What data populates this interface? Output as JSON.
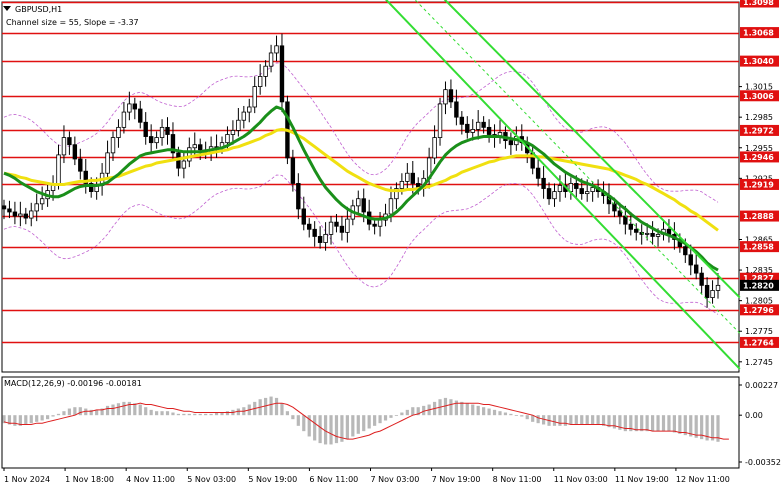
{
  "chart_data": {
    "type": "candlestick",
    "symbol_label": "GBPUSD,H1",
    "channel_label": "Channel size = 55, Slope = -3.37",
    "price_axis": {
      "ylim": [
        1.2735,
        1.3098
      ],
      "ticks": [
        "1.3098",
        "1.3068",
        "1.3040",
        "1.3015",
        "1.3006",
        "1.2985",
        "1.2972",
        "1.2955",
        "1.2946",
        "1.2925",
        "1.2919",
        "1.2888",
        "1.2865",
        "1.2858",
        "1.2835",
        "1.2827",
        "1.2820",
        "1.2805",
        "1.2796",
        "1.2775",
        "1.2764",
        "1.2745"
      ]
    },
    "horizontal_levels": [
      1.3098,
      1.3068,
      1.304,
      1.3006,
      1.2972,
      1.2946,
      1.2919,
      1.2888,
      1.2858,
      1.2827,
      1.2796,
      1.2764
    ],
    "current_price": 1.282,
    "time_axis_labels": [
      "1 Nov 2024",
      "1 Nov 18:00",
      "4 Nov 11:00",
      "5 Nov 03:00",
      "5 Nov 19:00",
      "6 Nov 11:00",
      "7 Nov 03:00",
      "7 Nov 19:00",
      "8 Nov 11:00",
      "11 Nov 03:00",
      "11 Nov 19:00",
      "12 Nov 11:00"
    ],
    "closes": [
      1.2895,
      1.2892,
      1.2888,
      1.289,
      1.2886,
      1.2893,
      1.29,
      1.2905,
      1.2913,
      1.292,
      1.2948,
      1.2965,
      1.2958,
      1.2944,
      1.2932,
      1.292,
      1.2912,
      1.2918,
      1.293,
      1.295,
      1.2965,
      1.2975,
      1.299,
      1.2998,
      1.2993,
      1.298,
      1.2966,
      1.296,
      1.2965,
      1.2975,
      1.2968,
      1.295,
      1.2935,
      1.2942,
      1.2955,
      1.2958,
      1.2953,
      1.295,
      1.2956,
      1.2955,
      1.296,
      1.2968,
      1.2972,
      1.2982,
      1.299,
      1.2995,
      1.3015,
      1.3025,
      1.3035,
      1.3048,
      1.3055,
      1.3,
      1.2945,
      1.292,
      1.2895,
      1.288,
      1.2875,
      1.2868,
      1.2862,
      1.287,
      1.2882,
      1.2878,
      1.2872,
      1.2885,
      1.2898,
      1.2905,
      1.2892,
      1.288,
      1.2878,
      1.2884,
      1.289,
      1.2905,
      1.2915,
      1.2922,
      1.293,
      1.292,
      1.2915,
      1.2925,
      1.2945,
      1.2965,
      1.2998,
      1.3012,
      1.3,
      1.2985,
      1.2978,
      1.297,
      1.2973,
      1.298,
      1.2975,
      1.2968,
      1.2965,
      1.297,
      1.2962,
      1.2958,
      1.2966,
      1.296,
      1.295,
      1.2935,
      1.2925,
      1.2915,
      1.2905,
      1.2912,
      1.2918,
      1.2912,
      1.292,
      1.2915,
      1.291,
      1.2912,
      1.2916,
      1.2912,
      1.2908,
      1.29,
      1.2893,
      1.2888,
      1.288,
      1.2875,
      1.2872,
      1.287,
      1.2871,
      1.2868,
      1.287,
      1.2875,
      1.287,
      1.2865,
      1.2858,
      1.285,
      1.284,
      1.2832,
      1.282,
      1.2808,
      1.2815,
      1.282
    ],
    "moving_averages": {
      "ma_green": [
        1.293,
        1.2928,
        1.2925,
        1.2921,
        1.2918,
        1.2915,
        1.2912,
        1.291,
        1.2908,
        1.2907,
        1.2907,
        1.2909,
        1.2912,
        1.2915,
        1.2917,
        1.2918,
        1.2918,
        1.2918,
        1.2919,
        1.2921,
        1.2925,
        1.2929,
        1.2934,
        1.2939,
        1.2943,
        1.2947,
        1.2949,
        1.295,
        1.2951,
        1.2952,
        1.2953,
        1.2953,
        1.2952,
        1.2951,
        1.2951,
        1.2951,
        1.2951,
        1.2952,
        1.2953,
        1.2954,
        1.2955,
        1.2957,
        1.296,
        1.2963,
        1.2966,
        1.297,
        1.2975,
        1.298,
        1.2986,
        1.2991,
        1.2995,
        1.2993,
        1.2985,
        1.2975,
        1.2964,
        1.2953,
        1.2943,
        1.2933,
        1.2924,
        1.2916,
        1.291,
        1.2904,
        1.2899,
        1.2895,
        1.2892,
        1.289,
        1.2888,
        1.2886,
        1.2885,
        1.2885,
        1.2886,
        1.2888,
        1.2892,
        1.2897,
        1.2903,
        1.2908,
        1.2913,
        1.2918,
        1.2925,
        1.2933,
        1.2941,
        1.2948,
        1.2953,
        1.2957,
        1.296,
        1.2962,
        1.2964,
        1.2965,
        1.2966,
        1.2966,
        1.2966,
        1.2966,
        1.2965,
        1.2964,
        1.2963,
        1.2962,
        1.296,
        1.2957,
        1.2953,
        1.2949,
        1.2944,
        1.2939,
        1.2935,
        1.2931,
        1.2928,
        1.2925,
        1.2922,
        1.292,
        1.2918,
        1.2915,
        1.2912,
        1.2908,
        1.2904,
        1.2899,
        1.2895,
        1.289,
        1.2886,
        1.2882,
        1.2879,
        1.2876,
        1.2873,
        1.2871,
        1.2869,
        1.2867,
        1.2864,
        1.2861,
        1.2857,
        1.2853,
        1.2848,
        1.2842,
        1.2838,
        1.2835
      ],
      "ma_yellow": [
        1.293,
        1.2929,
        1.2928,
        1.2926,
        1.2925,
        1.2923,
        1.2922,
        1.2921,
        1.292,
        1.2919,
        1.2919,
        1.2919,
        1.292,
        1.2921,
        1.2922,
        1.2922,
        1.2923,
        1.2923,
        1.2924,
        1.2925,
        1.2926,
        1.2927,
        1.2929,
        1.2931,
        1.2933,
        1.2935,
        1.2937,
        1.2938,
        1.294,
        1.2941,
        1.2942,
        1.2943,
        1.2944,
        1.2945,
        1.2946,
        1.2947,
        1.2948,
        1.2949,
        1.295,
        1.2951,
        1.2952,
        1.2953,
        1.2955,
        1.2956,
        1.2958,
        1.296,
        1.2962,
        1.2964,
        1.2967,
        1.2969,
        1.2972,
        1.2973,
        1.2972,
        1.297,
        1.2967,
        1.2964,
        1.296,
        1.2956,
        1.2952,
        1.2948,
        1.2944,
        1.294,
        1.2936,
        1.2932,
        1.2929,
        1.2926,
        1.2923,
        1.292,
        1.2918,
        1.2916,
        1.2914,
        1.2913,
        1.2913,
        1.2913,
        1.2914,
        1.2914,
        1.2915,
        1.2916,
        1.2917,
        1.2919,
        1.2921,
        1.2923,
        1.2926,
        1.2928,
        1.2931,
        1.2933,
        1.2935,
        1.2937,
        1.2939,
        1.2941,
        1.2942,
        1.2944,
        1.2945,
        1.2946,
        1.2947,
        1.2947,
        1.2947,
        1.2947,
        1.2946,
        1.2946,
        1.2945,
        1.2944,
        1.2943,
        1.2942,
        1.2941,
        1.294,
        1.2939,
        1.2938,
        1.2937,
        1.2936,
        1.2935,
        1.2934,
        1.2932,
        1.293,
        1.2928,
        1.2926,
        1.2924,
        1.2921,
        1.2919,
        1.2916,
        1.2913,
        1.291,
        1.2907,
        1.2904,
        1.29,
        1.2897,
        1.2893,
        1.289,
        1.2886,
        1.2882,
        1.2878,
        1.2874
      ]
    },
    "macd": {
      "label": "MACD(12,26,9) -0.00196 -0.00181",
      "ylim": [
        -0.00352,
        0.00227
      ],
      "ticks": [
        "0.00227",
        "0.00",
        "-0.00352"
      ],
      "histogram": [
        -0.0006,
        -0.0007,
        -0.0008,
        -0.0008,
        -0.0007,
        -0.0006,
        -0.0005,
        -0.0004,
        -0.0003,
        -0.0001,
        0.0001,
        0.0003,
        0.0005,
        0.0006,
        0.0006,
        0.0005,
        0.0004,
        0.0004,
        0.0005,
        0.0007,
        0.0008,
        0.0009,
        0.001,
        0.001,
        0.0009,
        0.0008,
        0.0006,
        0.0004,
        0.0003,
        0.0003,
        0.0003,
        0.0002,
        0.0001,
        0.0001,
        0.0001,
        0.0001,
        0.0001,
        0.0001,
        0.0001,
        0.0002,
        0.0002,
        0.0003,
        0.0004,
        0.0005,
        0.0006,
        0.0008,
        0.001,
        0.0012,
        0.0013,
        0.0014,
        0.0013,
        0.0009,
        0.0003,
        -0.0003,
        -0.0008,
        -0.0012,
        -0.0016,
        -0.0019,
        -0.0021,
        -0.0022,
        -0.0022,
        -0.0021,
        -0.002,
        -0.0018,
        -0.0016,
        -0.0014,
        -0.0012,
        -0.001,
        -0.0008,
        -0.0006,
        -0.0004,
        -0.0002,
        0.0,
        0.0002,
        0.0004,
        0.0006,
        0.0006,
        0.0007,
        0.0008,
        0.001,
        0.0012,
        0.0013,
        0.0012,
        0.0011,
        0.001,
        0.0009,
        0.0008,
        0.0007,
        0.0006,
        0.0005,
        0.0004,
        0.0003,
        0.0002,
        0.0001,
        0.0,
        -0.0001,
        -0.0003,
        -0.0005,
        -0.0006,
        -0.0007,
        -0.0008,
        -0.0008,
        -0.0008,
        -0.0008,
        -0.0007,
        -0.0007,
        -0.0007,
        -0.0007,
        -0.0007,
        -0.0007,
        -0.0008,
        -0.0009,
        -0.001,
        -0.0011,
        -0.0012,
        -0.0012,
        -0.0012,
        -0.0012,
        -0.0012,
        -0.0012,
        -0.0012,
        -0.0012,
        -0.0012,
        -0.0013,
        -0.0014,
        -0.0015,
        -0.0016,
        -0.0017,
        -0.0018,
        -0.0019,
        -0.0019,
        -0.002
      ],
      "signal": [
        -0.0005,
        -0.0006,
        -0.0006,
        -0.0007,
        -0.0007,
        -0.0007,
        -0.0006,
        -0.0006,
        -0.0005,
        -0.0004,
        -0.0003,
        -0.0002,
        -0.0001,
        0.0,
        0.0002,
        0.0003,
        0.0003,
        0.0004,
        0.0004,
        0.0005,
        0.0005,
        0.0006,
        0.0007,
        0.0008,
        0.0008,
        0.0009,
        0.0008,
        0.0008,
        0.0007,
        0.0006,
        0.0005,
        0.0005,
        0.0004,
        0.0003,
        0.0003,
        0.0002,
        0.0002,
        0.0002,
        0.0002,
        0.0002,
        0.0002,
        0.0002,
        0.0002,
        0.0003,
        0.0003,
        0.0004,
        0.0005,
        0.0006,
        0.0007,
        0.0008,
        0.0009,
        0.0009,
        0.0008,
        0.0006,
        0.0003,
        0.0,
        -0.0003,
        -0.0006,
        -0.0009,
        -0.0012,
        -0.0014,
        -0.0016,
        -0.0017,
        -0.0018,
        -0.0018,
        -0.0017,
        -0.0016,
        -0.0015,
        -0.0013,
        -0.0012,
        -0.001,
        -0.0008,
        -0.0006,
        -0.0004,
        -0.0002,
        0.0,
        0.0001,
        0.0003,
        0.0004,
        0.0005,
        0.0006,
        0.0007,
        0.0008,
        0.0009,
        0.0009,
        0.0009,
        0.0009,
        0.0009,
        0.0008,
        0.0008,
        0.0007,
        0.0006,
        0.0005,
        0.0004,
        0.0003,
        0.0002,
        0.0001,
        0.0,
        -0.0002,
        -0.0003,
        -0.0004,
        -0.0005,
        -0.0006,
        -0.0006,
        -0.0007,
        -0.0007,
        -0.0007,
        -0.0007,
        -0.0007,
        -0.0007,
        -0.0007,
        -0.0008,
        -0.0008,
        -0.0009,
        -0.001,
        -0.001,
        -0.0011,
        -0.0011,
        -0.0011,
        -0.0012,
        -0.0012,
        -0.0012,
        -0.0012,
        -0.0012,
        -0.0013,
        -0.0013,
        -0.0014,
        -0.0015,
        -0.0015,
        -0.0016,
        -0.0017,
        -0.0017,
        -0.0018,
        -0.0018
      ]
    },
    "colors": {
      "level_line": "#e01010",
      "level_label_bg": "#e01010",
      "up_candle": "#000000",
      "down_candle": "#000000",
      "ma_green": "#1a8f1a",
      "ma_yellow": "#f0e010",
      "channel_line": "#33dd33",
      "envelope": "#c060d0",
      "current_price_bg": "#000000",
      "macd_hist": "#b8b8b8",
      "macd_signal": "#dd2020"
    },
    "title": "",
    "xlabel": "",
    "ylabel": ""
  }
}
